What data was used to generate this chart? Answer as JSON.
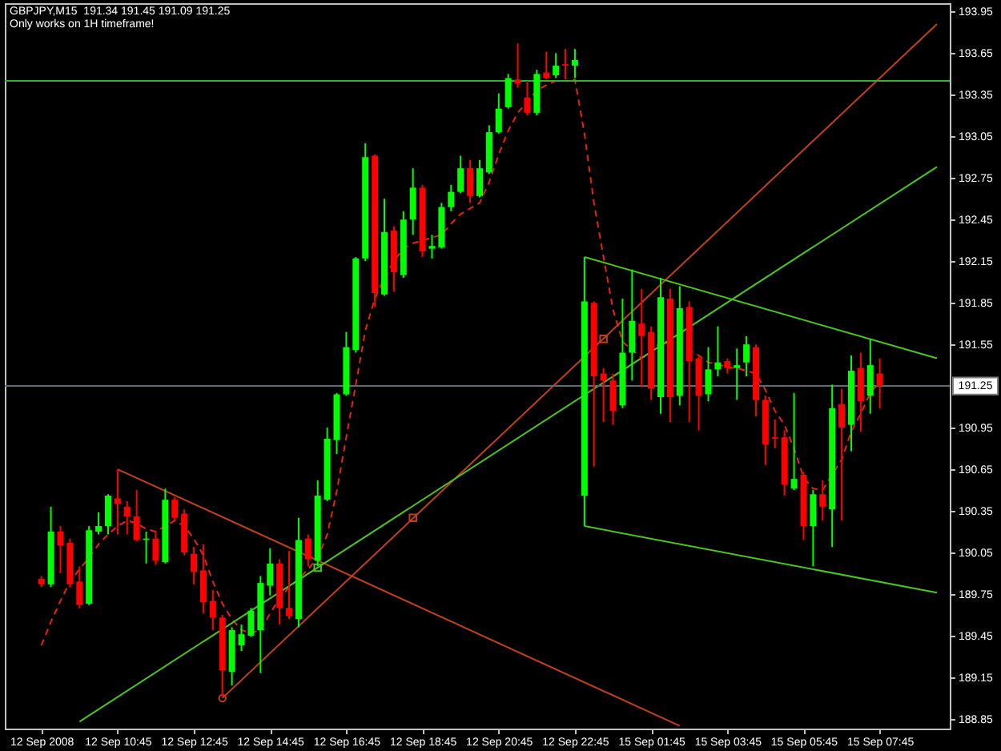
{
  "chart_data": {
    "type": "candlestick",
    "title": "GBPJPY,M15  191.34 191.45 191.09 191.25",
    "subtitle": "Only works on 1H timeframe!",
    "categories": [
      "12 Sep 2008",
      null,
      null,
      null,
      null,
      null,
      null,
      null,
      "12 Sep 10:45",
      null,
      null,
      null,
      null,
      null,
      null,
      null,
      "12 Sep 12:45",
      null,
      null,
      null,
      null,
      null,
      null,
      null,
      "12 Sep 14:45",
      null,
      null,
      null,
      null,
      null,
      null,
      null,
      "12 Sep 16:45",
      null,
      null,
      null,
      null,
      null,
      null,
      null,
      "12 Sep 18:45",
      null,
      null,
      null,
      null,
      null,
      null,
      null,
      "12 Sep 20:45",
      null,
      null,
      null,
      null,
      null,
      null,
      null,
      "12 Sep 22:45",
      null,
      null,
      null,
      null,
      null,
      null,
      null,
      "15 Sep 01:45",
      null,
      null,
      null,
      null,
      null,
      null,
      null,
      "15 Sep 03:45",
      null,
      null,
      null,
      null,
      null,
      null,
      null,
      "15 Sep 05:45",
      null,
      null,
      null,
      null,
      null,
      null,
      null,
      "15 Sep 07:45",
      null,
      null,
      null,
      null,
      null,
      null
    ],
    "ohlc": [
      [
        189.86,
        189.88,
        189.8,
        189.82
      ],
      [
        189.82,
        190.38,
        189.8,
        190.2
      ],
      [
        190.2,
        190.24,
        189.9,
        190.1
      ],
      [
        190.12,
        190.15,
        189.8,
        189.82
      ],
      [
        189.84,
        189.95,
        189.65,
        189.67
      ],
      [
        189.68,
        190.24,
        189.67,
        190.21
      ],
      [
        190.2,
        190.34,
        190.18,
        190.24
      ],
      [
        190.24,
        190.47,
        190.18,
        190.46
      ],
      [
        190.44,
        190.65,
        190.18,
        190.4
      ],
      [
        190.38,
        190.42,
        190.18,
        190.31
      ],
      [
        190.31,
        190.5,
        190.13,
        190.14
      ],
      [
        190.14,
        190.2,
        189.97,
        190.15
      ],
      [
        190.15,
        190.2,
        189.96,
        189.99
      ],
      [
        189.98,
        190.51,
        189.97,
        190.43
      ],
      [
        190.43,
        190.45,
        190.28,
        190.3
      ],
      [
        190.33,
        190.36,
        190.03,
        190.05
      ],
      [
        190.04,
        190.09,
        189.82,
        189.91
      ],
      [
        189.92,
        190.11,
        189.61,
        189.69
      ],
      [
        189.7,
        189.78,
        189.49,
        189.58
      ],
      [
        189.58,
        189.6,
        189.01,
        189.2
      ],
      [
        189.19,
        189.51,
        189.09,
        189.49
      ],
      [
        189.38,
        189.53,
        189.34,
        189.46
      ],
      [
        189.45,
        189.65,
        189.44,
        189.63
      ],
      [
        189.49,
        189.88,
        189.18,
        189.83
      ],
      [
        189.81,
        190.08,
        189.74,
        189.97
      ],
      [
        189.97,
        190.0,
        189.53,
        189.65
      ],
      [
        189.65,
        190.06,
        189.57,
        189.59
      ],
      [
        189.57,
        190.3,
        189.51,
        190.14
      ],
      [
        190.15,
        190.18,
        189.95,
        190.0
      ],
      [
        189.99,
        190.57,
        189.95,
        190.46
      ],
      [
        190.43,
        190.95,
        190.42,
        190.87
      ],
      [
        190.86,
        191.2,
        190.76,
        191.19
      ],
      [
        191.19,
        191.64,
        191.18,
        191.53
      ],
      [
        191.51,
        192.18,
        191.49,
        192.17
      ],
      [
        192.17,
        193.0,
        192.15,
        192.9
      ],
      [
        192.91,
        192.92,
        191.82,
        191.92
      ],
      [
        191.91,
        192.6,
        191.9,
        192.36
      ],
      [
        192.37,
        192.4,
        191.93,
        192.07
      ],
      [
        192.05,
        192.51,
        192.03,
        192.45
      ],
      [
        192.45,
        192.82,
        192.34,
        192.68
      ],
      [
        192.68,
        192.7,
        192.18,
        192.22
      ],
      [
        192.24,
        192.34,
        192.17,
        192.26
      ],
      [
        192.25,
        192.57,
        192.24,
        192.54
      ],
      [
        192.54,
        192.7,
        192.51,
        192.65
      ],
      [
        192.65,
        192.91,
        192.64,
        192.82
      ],
      [
        192.82,
        192.88,
        192.57,
        192.62
      ],
      [
        192.62,
        192.88,
        192.61,
        192.82
      ],
      [
        192.79,
        193.13,
        192.78,
        193.08
      ],
      [
        193.08,
        193.36,
        193.07,
        193.25
      ],
      [
        193.26,
        193.5,
        193.25,
        193.47
      ],
      [
        193.46,
        193.72,
        193.4,
        193.43
      ],
      [
        193.33,
        193.45,
        193.2,
        193.22
      ],
      [
        193.22,
        193.53,
        193.2,
        193.5
      ],
      [
        193.51,
        193.66,
        193.46,
        193.47
      ],
      [
        193.49,
        193.65,
        193.47,
        193.56
      ],
      [
        193.57,
        193.68,
        193.46,
        193.56
      ],
      [
        193.56,
        193.68,
        193.47,
        193.6
      ],
      [
        190.46,
        192.18,
        190.24,
        191.86
      ],
      [
        191.85,
        191.86,
        190.67,
        191.32
      ],
      [
        191.34,
        191.38,
        190.99,
        191.29
      ],
      [
        191.29,
        191.34,
        190.97,
        191.07
      ],
      [
        191.11,
        191.88,
        191.09,
        191.49
      ],
      [
        191.49,
        192.09,
        191.29,
        191.72
      ],
      [
        191.7,
        191.95,
        191.24,
        191.61
      ],
      [
        191.64,
        191.68,
        191.15,
        191.23
      ],
      [
        191.17,
        192.03,
        191.05,
        191.89
      ],
      [
        191.88,
        191.95,
        190.99,
        191.17
      ],
      [
        191.18,
        191.97,
        191.11,
        191.81
      ],
      [
        191.82,
        191.86,
        190.99,
        191.43
      ],
      [
        191.45,
        191.47,
        190.93,
        191.18
      ],
      [
        191.19,
        191.53,
        191.14,
        191.37
      ],
      [
        191.37,
        191.68,
        191.32,
        191.42
      ],
      [
        191.43,
        191.45,
        191.34,
        191.38
      ],
      [
        191.38,
        191.52,
        191.15,
        191.4
      ],
      [
        191.42,
        191.61,
        191.32,
        191.55
      ],
      [
        191.53,
        191.55,
        191.03,
        191.15
      ],
      [
        191.15,
        191.18,
        190.68,
        190.83
      ],
      [
        190.88,
        191.01,
        190.8,
        190.87
      ],
      [
        190.88,
        190.93,
        190.46,
        190.54
      ],
      [
        190.51,
        191.2,
        190.5,
        190.58
      ],
      [
        190.61,
        190.63,
        190.14,
        190.24
      ],
      [
        190.24,
        190.5,
        189.95,
        190.47
      ],
      [
        190.47,
        190.57,
        190.28,
        190.38
      ],
      [
        190.36,
        191.26,
        190.09,
        191.09
      ],
      [
        191.12,
        191.23,
        190.28,
        190.95
      ],
      [
        190.97,
        191.47,
        190.78,
        191.36
      ],
      [
        191.38,
        191.49,
        190.92,
        191.14
      ],
      [
        191.18,
        191.59,
        191.05,
        191.4
      ],
      [
        191.34,
        191.45,
        191.09,
        191.25
      ],
      null,
      null,
      null,
      null,
      null,
      null
    ],
    "colors": [
      "#ff0000",
      "#00ff00",
      "#ff0000",
      "#ff0000",
      "#ff0000",
      "#00ff00",
      "#00ff00",
      "#00ff00",
      "#ff0000",
      "#ff0000",
      "#ff0000",
      "#00ff00",
      "#ff0000",
      "#00ff00",
      "#ff0000",
      "#ff0000",
      "#ff0000",
      "#ff0000",
      "#ff0000",
      "#ff0000",
      "#00ff00",
      "#00ff00",
      "#00ff00",
      "#00ff00",
      "#00ff00",
      "#ff0000",
      "#ff0000",
      "#00ff00",
      "#ff0000",
      "#00ff00",
      "#00ff00",
      "#00ff00",
      "#00ff00",
      "#00ff00",
      "#00ff00",
      "#ff0000",
      "#00ff00",
      "#ff0000",
      "#00ff00",
      "#00ff00",
      "#ff0000",
      "#00ff00",
      "#00ff00",
      "#00ff00",
      "#00ff00",
      "#ff0000",
      "#00ff00",
      "#00ff00",
      "#00ff00",
      "#00ff00",
      "#ff0000",
      "#ff0000",
      "#00ff00",
      "#ff0000",
      "#00ff00",
      "#ff0000",
      "#00ff00",
      "#00ff00",
      "#ff0000",
      "#ff0000",
      "#ff0000",
      "#00ff00",
      "#00ff00",
      "#ff0000",
      "#ff0000",
      "#00ff00",
      "#ff0000",
      "#00ff00",
      "#ff0000",
      "#ff0000",
      "#00ff00",
      "#00ff00",
      "#ff0000",
      "#00ff00",
      "#00ff00",
      "#ff0000",
      "#ff0000",
      "#ff0000",
      "#ff0000",
      "#00ff00",
      "#ff0000",
      "#00ff00",
      "#ff0000",
      "#00ff00",
      "#ff0000",
      "#00ff00",
      "#ff0000",
      "#00ff00",
      "#ff0000",
      null,
      null,
      null,
      null,
      null,
      null
    ],
    "series": [
      {
        "type": "line",
        "color": "#e8240c",
        "line_style": "dashed",
        "values": [
          189.38,
          189.55,
          189.7,
          189.84,
          189.93,
          190.01,
          190.11,
          190.18,
          190.24,
          190.28,
          190.26,
          190.22,
          190.2,
          190.24,
          190.28,
          190.24,
          190.15,
          190.03,
          189.84,
          189.68,
          189.57,
          189.49,
          189.47,
          189.49,
          189.61,
          189.72,
          189.8,
          189.86,
          189.93,
          190.01,
          190.18,
          190.49,
          190.88,
          191.26,
          191.65,
          191.88,
          192.03,
          192.15,
          192.24,
          192.28,
          192.3,
          192.32,
          192.34,
          192.42,
          192.49,
          192.53,
          192.57,
          192.72,
          192.92,
          193.09,
          193.22,
          193.3,
          193.38,
          193.42,
          193.45,
          193.45,
          193.46,
          193.07,
          192.57,
          192.18,
          191.8,
          191.57,
          191.51,
          191.45,
          191.49,
          191.57,
          191.55,
          191.53,
          191.51,
          191.47,
          191.42,
          191.41,
          191.38,
          191.38,
          191.36,
          191.34,
          191.22,
          191.07,
          190.97,
          190.8,
          190.59,
          190.51,
          190.5,
          null,
          190.72,
          190.92,
          191.05,
          191.2,
          191.28,
          null,
          null,
          null,
          null,
          null,
          null
        ]
      },
      {
        "type": "line",
        "color": "#c4401a",
        "values": [
          null,
          null,
          null,
          null,
          null,
          null,
          null,
          null,
          190.65,
          null,
          null,
          null,
          null,
          null,
          null,
          null,
          null,
          null,
          null,
          null,
          null,
          null,
          null,
          null,
          null,
          null,
          null,
          null,
          null,
          null,
          null,
          null,
          null,
          null,
          null,
          null,
          null,
          null,
          null,
          null,
          null,
          null,
          null,
          null,
          null,
          null,
          null,
          null,
          null,
          null,
          null,
          null,
          null,
          null,
          null,
          null,
          null,
          null,
          null,
          null,
          null,
          null,
          null,
          null,
          null,
          null,
          null,
          188.8,
          null,
          null,
          null,
          null,
          null,
          null,
          null,
          null,
          null,
          null,
          null,
          null,
          null,
          null,
          null,
          null,
          null,
          null,
          null,
          null,
          null,
          null,
          null,
          null,
          null,
          null,
          null
        ]
      },
      {
        "type": "line",
        "color": "#c4401a",
        "values": [
          null,
          null,
          null,
          null,
          null,
          null,
          null,
          null,
          null,
          null,
          null,
          null,
          null,
          null,
          null,
          null,
          null,
          null,
          null,
          189.0,
          null,
          null,
          null,
          null,
          null,
          null,
          null,
          null,
          null,
          null,
          null,
          null,
          null,
          null,
          null,
          null,
          null,
          null,
          null,
          null,
          null,
          null,
          null,
          null,
          null,
          null,
          null,
          null,
          null,
          null,
          null,
          null,
          null,
          null,
          null,
          null,
          null,
          null,
          null,
          null,
          null,
          null,
          null,
          null,
          null,
          null,
          null,
          null,
          null,
          null,
          null,
          null,
          null,
          null,
          null,
          null,
          null,
          null,
          null,
          null,
          null,
          null,
          null,
          null,
          null,
          null,
          null,
          null,
          null,
          null,
          null,
          null,
          null,
          null,
          193.86
        ]
      },
      {
        "type": "line",
        "color": "#4cc51f",
        "values": [
          null,
          null,
          null,
          null,
          188.83,
          null,
          null,
          null,
          null,
          null,
          null,
          null,
          null,
          null,
          null,
          null,
          null,
          null,
          null,
          null,
          null,
          null,
          null,
          null,
          null,
          null,
          null,
          null,
          null,
          null,
          null,
          null,
          null,
          null,
          null,
          null,
          null,
          null,
          null,
          null,
          null,
          null,
          null,
          null,
          null,
          null,
          null,
          null,
          null,
          null,
          null,
          null,
          null,
          null,
          null,
          null,
          null,
          null,
          null,
          null,
          null,
          null,
          null,
          null,
          null,
          null,
          null,
          null,
          null,
          null,
          null,
          null,
          null,
          null,
          null,
          null,
          null,
          null,
          null,
          null,
          null,
          null,
          null,
          null,
          null,
          null,
          null,
          null,
          null,
          null,
          null,
          null,
          null,
          null,
          192.83
        ]
      },
      {
        "type": "line",
        "color": "#4cc51f",
        "values": [
          null,
          null,
          null,
          null,
          null,
          null,
          null,
          null,
          null,
          null,
          null,
          null,
          null,
          null,
          null,
          null,
          null,
          null,
          null,
          null,
          null,
          null,
          null,
          null,
          null,
          null,
          null,
          null,
          null,
          null,
          null,
          null,
          null,
          null,
          null,
          null,
          null,
          null,
          null,
          null,
          null,
          null,
          null,
          null,
          null,
          null,
          null,
          null,
          null,
          null,
          null,
          null,
          null,
          null,
          null,
          null,
          null,
          192.18,
          null,
          null,
          null,
          null,
          null,
          null,
          null,
          null,
          null,
          null,
          null,
          null,
          null,
          null,
          null,
          null,
          null,
          null,
          null,
          null,
          null,
          null,
          null,
          null,
          null,
          null,
          null,
          null,
          null,
          null,
          null,
          null,
          null,
          null,
          null,
          null,
          191.45
        ]
      },
      {
        "type": "line",
        "color": "#4cc51f",
        "values": [
          null,
          null,
          null,
          null,
          null,
          null,
          null,
          null,
          null,
          null,
          null,
          null,
          null,
          null,
          null,
          null,
          null,
          null,
          null,
          null,
          null,
          null,
          null,
          null,
          null,
          null,
          null,
          null,
          null,
          null,
          null,
          null,
          null,
          null,
          null,
          null,
          null,
          null,
          null,
          null,
          null,
          null,
          null,
          null,
          null,
          null,
          null,
          null,
          null,
          null,
          null,
          null,
          null,
          null,
          null,
          null,
          null,
          190.24,
          null,
          null,
          null,
          null,
          null,
          null,
          null,
          null,
          null,
          null,
          null,
          null,
          null,
          null,
          null,
          null,
          null,
          null,
          null,
          null,
          null,
          null,
          null,
          null,
          null,
          null,
          null,
          null,
          null,
          null,
          null,
          null,
          null,
          null,
          null,
          null,
          189.76
        ]
      },
      {
        "type": "scatter",
        "color": "#c4401a",
        "marker": "circle",
        "values": [
          null,
          null,
          null,
          null,
          null,
          null,
          null,
          null,
          null,
          null,
          null,
          null,
          null,
          null,
          null,
          null,
          null,
          null,
          null,
          189.0,
          null,
          null,
          null,
          null,
          null,
          null,
          null,
          null,
          null,
          null,
          null,
          null,
          null,
          null,
          null,
          null,
          null,
          null,
          null,
          null,
          null,
          null,
          null,
          null,
          null,
          null,
          null,
          null,
          null,
          null,
          null,
          null,
          null,
          null,
          null,
          null,
          null,
          null,
          null,
          null,
          null,
          null,
          null,
          null,
          null,
          null,
          null,
          null,
          null,
          null,
          null,
          null,
          null,
          null,
          null,
          null,
          null,
          null,
          null,
          null,
          null,
          null,
          null,
          null,
          null,
          null,
          null,
          null,
          null,
          null,
          null,
          null,
          null,
          null,
          null
        ]
      },
      {
        "type": "scatter",
        "color": "#c4401a",
        "marker": "square",
        "values": [
          null,
          null,
          null,
          null,
          null,
          null,
          null,
          null,
          null,
          null,
          null,
          null,
          null,
          null,
          null,
          null,
          null,
          null,
          null,
          null,
          null,
          null,
          null,
          null,
          null,
          null,
          null,
          null,
          null,
          null,
          null,
          null,
          null,
          null,
          null,
          null,
          null,
          null,
          null,
          190.3,
          null,
          null,
          null,
          null,
          null,
          null,
          null,
          null,
          null,
          null,
          null,
          null,
          null,
          null,
          null,
          null,
          null,
          null,
          null,
          191.59,
          null,
          null,
          null,
          null,
          null,
          null,
          null,
          null,
          null,
          null,
          null,
          null,
          null,
          null,
          null,
          null,
          null,
          null,
          null,
          null,
          null,
          null,
          null,
          null,
          null,
          null,
          null,
          null,
          null,
          null,
          null,
          null,
          null,
          null,
          null
        ]
      },
      {
        "type": "scatter",
        "color": "#4cc51f",
        "marker": "square",
        "values": [
          null,
          null,
          null,
          null,
          null,
          null,
          null,
          null,
          null,
          null,
          null,
          null,
          null,
          null,
          null,
          null,
          null,
          null,
          null,
          null,
          null,
          null,
          null,
          null,
          null,
          null,
          null,
          null,
          null,
          189.94,
          null,
          null,
          null,
          null,
          null,
          null,
          null,
          null,
          null,
          null,
          null,
          null,
          null,
          null,
          null,
          null,
          null,
          null,
          null,
          null,
          null,
          null,
          null,
          null,
          null,
          null,
          null,
          null,
          null,
          null,
          null,
          null,
          null,
          null,
          null,
          null,
          null,
          null,
          null,
          null,
          null,
          null,
          null,
          null,
          null,
          null,
          null,
          null,
          null,
          null,
          null,
          null,
          null,
          null,
          null,
          null,
          null,
          null,
          null,
          null,
          null,
          null,
          null,
          null,
          null
        ]
      }
    ],
    "ylim": [
      188.78,
      194.01
    ],
    "yticks": [
      193.95,
      193.65,
      193.35,
      193.05,
      192.75,
      192.45,
      192.15,
      191.85,
      191.55,
      190.95,
      190.65,
      190.35,
      190.05,
      189.75,
      189.45,
      189.15,
      188.85
    ],
    "ref_lines": [
      {
        "axis": "y",
        "value": 193.45,
        "color": "#2db52d"
      },
      {
        "axis": "y",
        "value": 191.25,
        "label": "191.25",
        "color": "#5d6b78"
      }
    ]
  }
}
